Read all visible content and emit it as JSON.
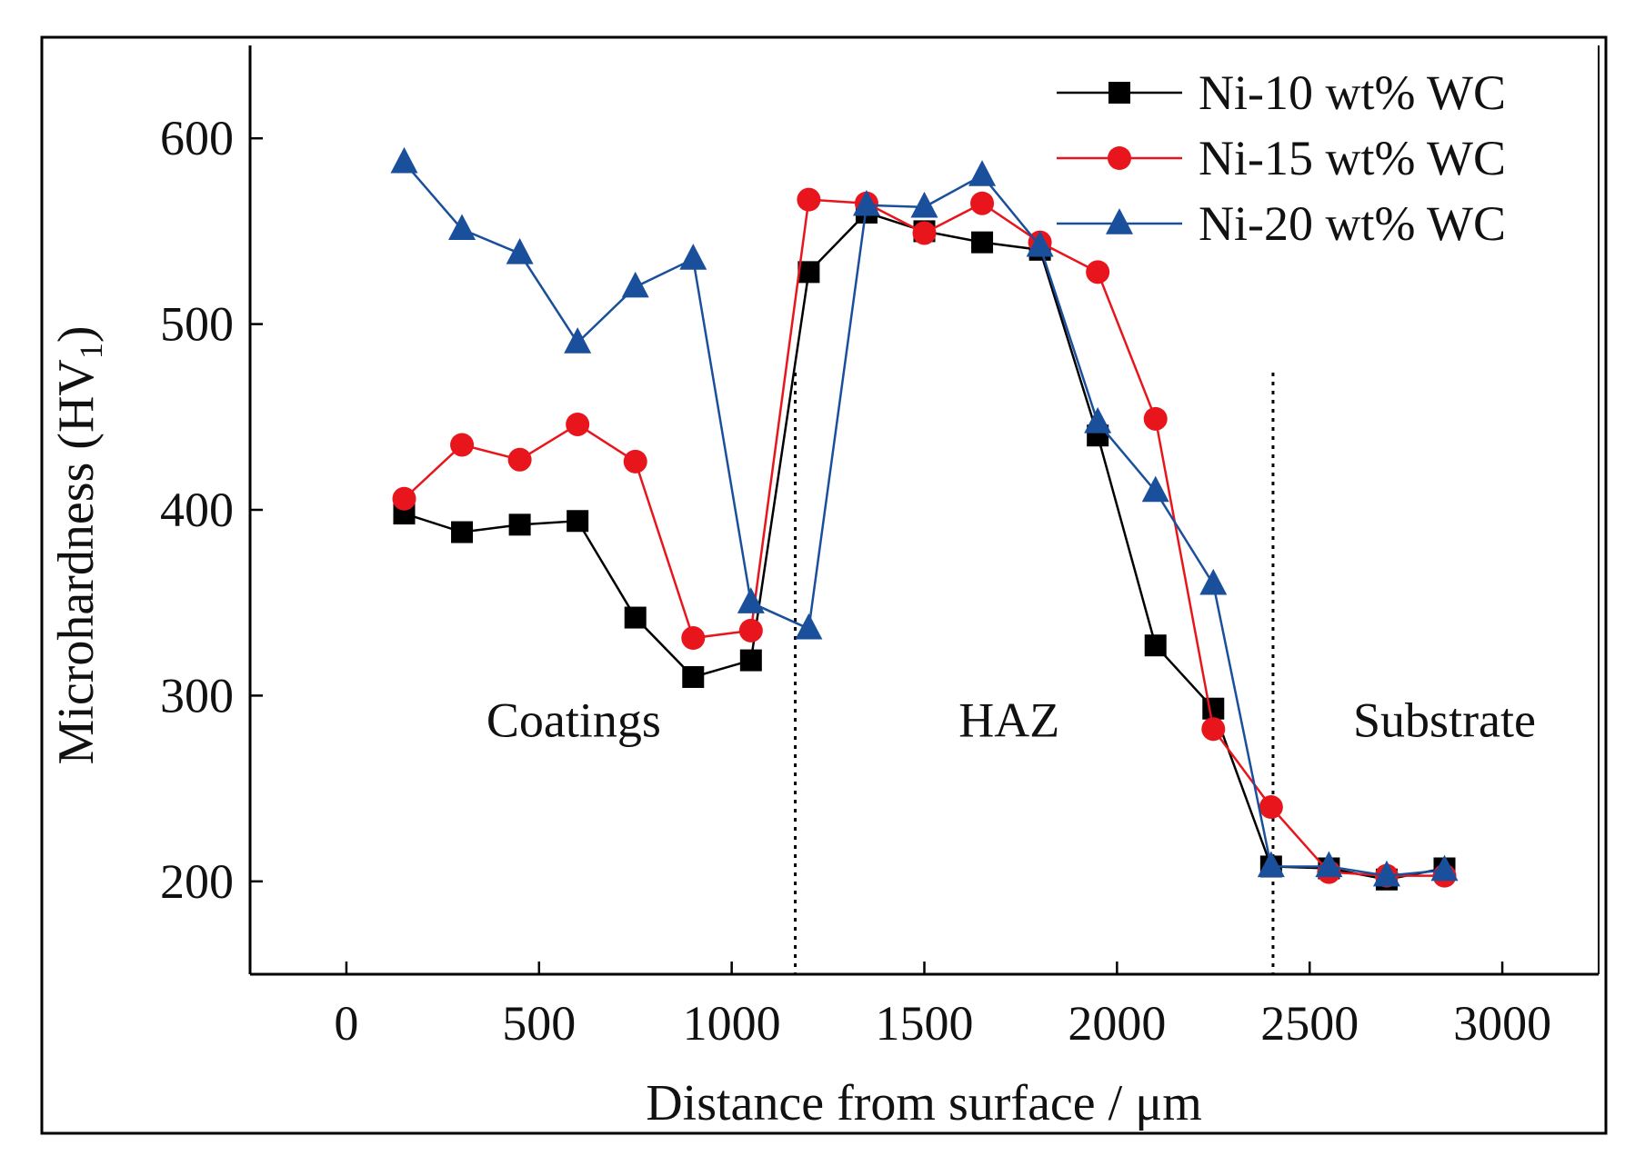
{
  "chart_data": {
    "type": "line",
    "title": "",
    "xlabel": "Distance from surface / μm",
    "ylabel": "Microhardness (HV",
    "ylabel_subscript": "1",
    "ylabel_close": ")",
    "xlim": [
      -250,
      3250
    ],
    "ylim": [
      150,
      650
    ],
    "xticks": [
      0,
      500,
      1000,
      1500,
      2000,
      2500,
      3000
    ],
    "xtick_labels": [
      "0",
      "500",
      "1000",
      "1500",
      "2000",
      "2500",
      "3000"
    ],
    "yticks": [
      200,
      300,
      400,
      500,
      600
    ],
    "ytick_labels": [
      "200",
      "300",
      "400",
      "500",
      "600"
    ],
    "legend_position": "top-right",
    "grid": false,
    "boundaries": [
      1165,
      2405
    ],
    "regions": [
      {
        "label": "Coatings",
        "x": 590,
        "y": 278
      },
      {
        "label": "HAZ",
        "x": 1720,
        "y": 278
      },
      {
        "label": "Substrate",
        "x": 2850,
        "y": 278
      }
    ],
    "series": [
      {
        "name": "Ni-10 wt% WC",
        "color": "#000000",
        "marker": "square",
        "x": [
          150,
          300,
          450,
          600,
          750,
          900,
          1050,
          1200,
          1350,
          1500,
          1650,
          1800,
          1950,
          2100,
          2250,
          2400,
          2550,
          2700,
          2850
        ],
        "y": [
          398,
          388,
          392,
          394,
          342,
          310,
          319,
          528,
          560,
          550,
          544,
          540,
          440,
          327,
          293,
          208,
          207,
          201,
          207
        ]
      },
      {
        "name": "Ni-15 wt% WC",
        "color": "#e8161c",
        "marker": "circle",
        "x": [
          150,
          300,
          450,
          600,
          750,
          900,
          1050,
          1200,
          1350,
          1500,
          1650,
          1800,
          1950,
          2100,
          2250,
          2400,
          2550,
          2700,
          2850
        ],
        "y": [
          406,
          435,
          427,
          446,
          426,
          331,
          335,
          567,
          565,
          549,
          565,
          544,
          528,
          449,
          282,
          240,
          205,
          203,
          203
        ]
      },
      {
        "name": "Ni-20 wt% WC",
        "color": "#1a4f9c",
        "marker": "triangle",
        "x": [
          150,
          300,
          450,
          600,
          750,
          900,
          1050,
          1200,
          1350,
          1500,
          1650,
          1800,
          1950,
          2100,
          2250,
          2400,
          2550,
          2700,
          2850
        ],
        "y": [
          587,
          551,
          538,
          490,
          520,
          535,
          350,
          336,
          564,
          563,
          580,
          542,
          447,
          410,
          360,
          208,
          208,
          203,
          206
        ]
      }
    ]
  }
}
